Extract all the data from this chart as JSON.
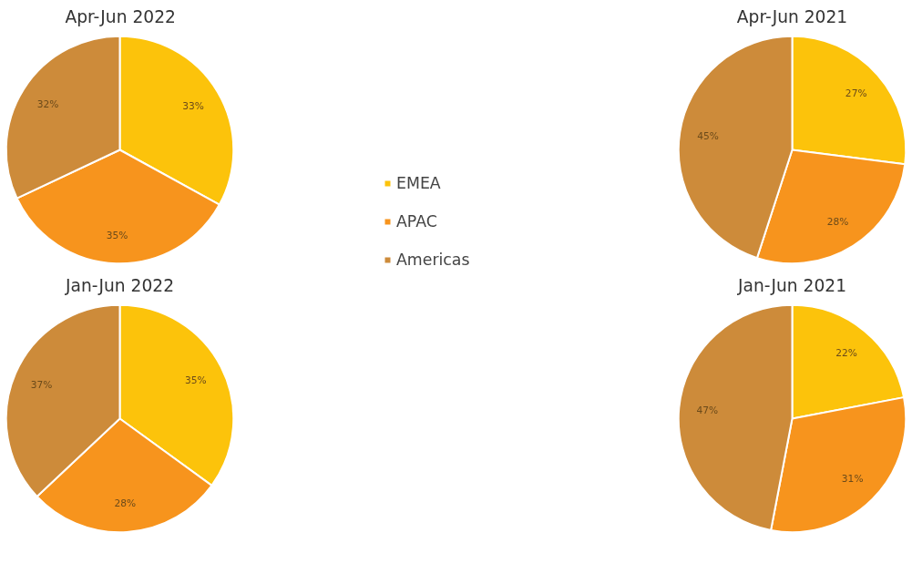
{
  "chart_data": [
    {
      "type": "pie",
      "title": "Apr-Jun 2022",
      "categories": [
        "EMEA",
        "APAC",
        "Americas"
      ],
      "values": [
        33,
        35,
        32
      ],
      "colors": [
        "#fcc30b",
        "#f7941d",
        "#cd8b3a"
      ],
      "value_labels": [
        "33%",
        "35%",
        "32%"
      ],
      "legend": "right"
    },
    {
      "type": "pie",
      "title": "Apr-Jun 2021",
      "values": [
        27,
        28,
        45
      ],
      "colors": [
        "#fcc30b",
        "#f7941d",
        "#cd8b3a"
      ],
      "value_labels": [
        "27%",
        "28%",
        "45%"
      ]
    },
    {
      "type": "pie",
      "title": "Jan-Jun 2022",
      "values": [
        35,
        28,
        37
      ],
      "colors": [
        "#fcc30b",
        "#f7941d",
        "#cd8b3a"
      ],
      "value_labels": [
        "35%",
        "28%",
        "37%"
      ]
    },
    {
      "type": "pie",
      "title": "Jan-Jun 2021",
      "values": [
        22,
        31,
        47
      ],
      "colors": [
        "#fcc30b",
        "#f7941d",
        "#cd8b3a"
      ],
      "value_labels": [
        "22%",
        "31%",
        "47%"
      ]
    }
  ]
}
